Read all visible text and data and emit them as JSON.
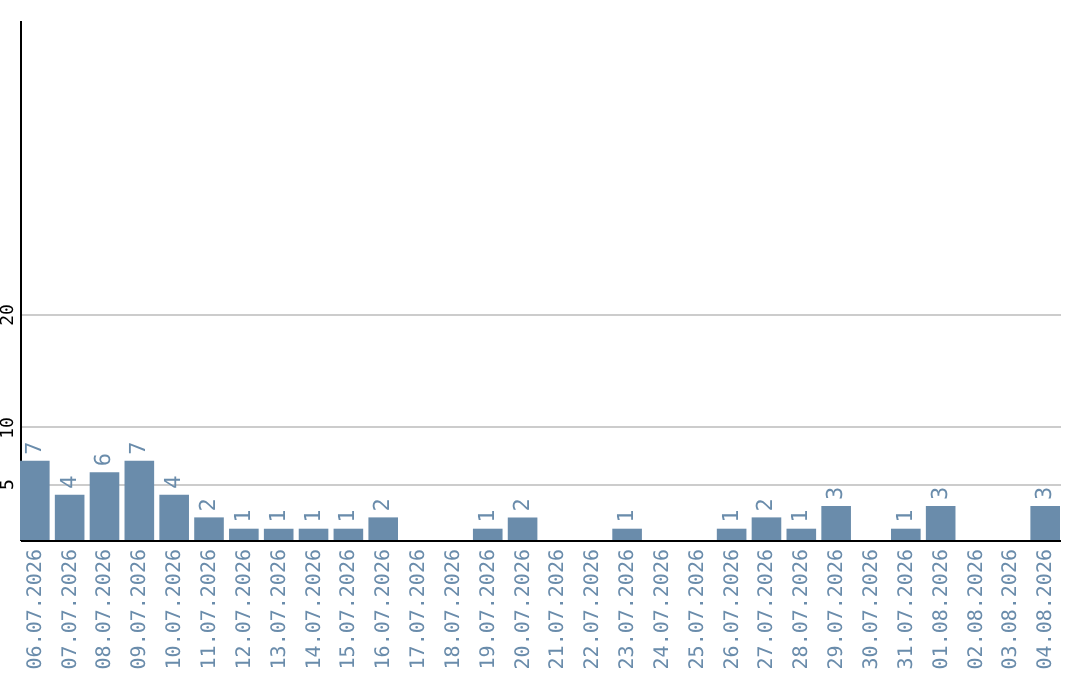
{
  "chart_data": {
    "type": "bar",
    "categories": [
      "06.07.2026",
      "07.07.2026",
      "08.07.2026",
      "09.07.2026",
      "10.07.2026",
      "11.07.2026",
      "12.07.2026",
      "13.07.2026",
      "14.07.2026",
      "15.07.2026",
      "16.07.2026",
      "17.07.2026",
      "18.07.2026",
      "19.07.2026",
      "20.07.2026",
      "21.07.2026",
      "22.07.2026",
      "23.07.2026",
      "24.07.2026",
      "25.07.2026",
      "26.07.2026",
      "27.07.2026",
      "28.07.2026",
      "29.07.2026",
      "30.07.2026",
      "31.07.2026",
      "01.08.2026",
      "02.08.2026",
      "03.08.2026",
      "04.08.2026"
    ],
    "values": [
      7,
      4,
      6,
      7,
      4,
      2,
      1,
      1,
      1,
      1,
      2,
      null,
      null,
      1,
      2,
      null,
      null,
      1,
      null,
      null,
      1,
      2,
      1,
      3,
      null,
      1,
      3,
      null,
      null,
      3
    ],
    "color": "#6a8cab",
    "ylim": [
      0,
      46
    ],
    "yticks": [
      5,
      10,
      20
    ],
    "grid": "y",
    "data_labels": true
  }
}
